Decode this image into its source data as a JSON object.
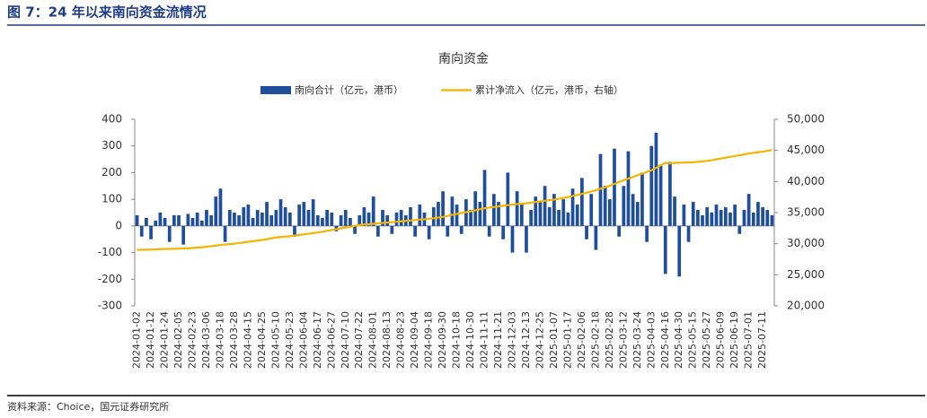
{
  "header": {
    "title": "图 7：24 年以来南向资金流情况"
  },
  "footer": {
    "source": "资料来源：Choice，国元证券研究所"
  },
  "chart_data": {
    "type": "bar_line",
    "title": "南向资金",
    "categories": [
      "2024-01-02",
      null,
      null,
      "2024-01-12",
      null,
      null,
      "2024-01-24",
      null,
      null,
      "2024-02-05",
      null,
      null,
      "2024-02-23",
      null,
      null,
      "2024-03-06",
      null,
      null,
      "2024-03-18",
      null,
      null,
      "2024-03-28",
      null,
      null,
      "2024-04-15",
      null,
      null,
      "2024-04-25",
      null,
      null,
      "2024-05-10",
      null,
      null,
      "2024-05-23",
      null,
      null,
      "2024-06-04",
      null,
      null,
      "2024-06-17",
      null,
      null,
      "2024-06-27",
      null,
      null,
      "2024-07-10",
      null,
      null,
      "2024-07-22",
      null,
      null,
      "2024-08-01",
      null,
      null,
      "2024-08-13",
      null,
      null,
      "2024-08-23",
      null,
      null,
      "2024-09-04",
      null,
      null,
      "2024-09-18",
      null,
      null,
      "2024-09-30",
      null,
      null,
      "2024-10-18",
      null,
      null,
      "2024-10-30",
      null,
      null,
      "2024-11-11",
      null,
      null,
      "2024-11-21",
      null,
      null,
      "2024-12-03",
      null,
      null,
      "2024-12-13",
      null,
      null,
      "2024-12-25",
      null,
      null,
      "2025-01-07",
      null,
      null,
      "2025-01-17",
      null,
      null,
      "2025-02-06",
      null,
      null,
      "2025-02-18",
      null,
      null,
      "2025-02-28",
      null,
      null,
      "2025-03-12",
      null,
      null,
      "2025-03-24",
      null,
      null,
      "2025-04-03",
      null,
      null,
      "2025-04-16",
      null,
      null,
      "2025-04-30",
      null,
      null,
      "2025-05-15",
      null,
      null,
      "2025-05-27",
      null,
      null,
      "2025-06-09",
      null,
      null,
      "2025-06-19",
      null,
      null,
      "2025-07-01",
      null,
      null,
      "2025-07-11",
      null,
      null
    ],
    "series": [
      {
        "name": "南向合计（亿元，港币）",
        "color": "#1f4e9c",
        "kind": "bar",
        "axis": "y",
        "values": [
          40,
          -40,
          30,
          -50,
          20,
          50,
          30,
          -60,
          40,
          40,
          -70,
          45,
          30,
          50,
          20,
          60,
          40,
          110,
          140,
          -60,
          60,
          50,
          40,
          70,
          80,
          30,
          60,
          50,
          90,
          40,
          60,
          100,
          70,
          50,
          -40,
          80,
          90,
          60,
          100,
          40,
          30,
          60,
          50,
          -20,
          40,
          60,
          30,
          -30,
          40,
          70,
          50,
          110,
          -40,
          60,
          40,
          -30,
          50,
          60,
          40,
          70,
          -40,
          80,
          50,
          -50,
          70,
          90,
          130,
          -40,
          110,
          80,
          -30,
          100,
          60,
          130,
          90,
          210,
          -40,
          120,
          90,
          -50,
          200,
          -100,
          130,
          80,
          -100,
          60,
          110,
          90,
          150,
          70,
          120,
          60,
          100,
          50,
          140,
          80,
          180,
          -50,
          120,
          -90,
          270,
          150,
          100,
          290,
          -40,
          150,
          280,
          120,
          90,
          200,
          -60,
          300,
          350,
          230,
          -180,
          240,
          110,
          -190,
          80,
          -60,
          90,
          60,
          40,
          70,
          50,
          80,
          60,
          70,
          50,
          80,
          -30,
          60,
          120,
          50,
          90,
          70,
          60,
          40
        ]
      },
      {
        "name": "累计净流入（亿元，港币，右轴）",
        "color": "#f5b400",
        "kind": "line",
        "axis": "y2",
        "values": [
          29000,
          29020,
          29030,
          29050,
          29080,
          29120,
          29150,
          29170,
          29180,
          29200,
          29230,
          29270,
          29300,
          29370,
          29430,
          29500,
          29600,
          29700,
          29800,
          29870,
          29930,
          30000,
          30100,
          30200,
          30300,
          30400,
          30500,
          30600,
          30730,
          30870,
          31000,
          31070,
          31130,
          31200,
          31300,
          31400,
          31500,
          31600,
          31700,
          31800,
          31930,
          32070,
          32200,
          32330,
          32470,
          32600,
          32730,
          32870,
          33000,
          33070,
          33130,
          33200,
          33270,
          33330,
          33400,
          33470,
          33530,
          33600,
          33670,
          33730,
          33800,
          33870,
          33930,
          34000,
          34100,
          34200,
          34300,
          34470,
          34630,
          34800,
          34930,
          35070,
          35200,
          35370,
          35530,
          35700,
          35800,
          35900,
          36000,
          36100,
          36200,
          36300,
          36370,
          36430,
          36500,
          36600,
          36700,
          36800,
          36900,
          37000,
          37100,
          37230,
          37370,
          37500,
          37670,
          37830,
          38000,
          38200,
          38400,
          38600,
          38830,
          39070,
          39300,
          39600,
          39900,
          40200,
          40470,
          40730,
          41000,
          41270,
          41530,
          41800,
          42200,
          42600,
          43000,
          42900,
          43000,
          43000,
          43030,
          43070,
          43100,
          43170,
          43230,
          43300,
          43430,
          43570,
          43700,
          43830,
          43970,
          44100,
          44230,
          44370,
          44500,
          44600,
          44700,
          44800,
          44930,
          45070
        ]
      }
    ],
    "ylim": [
      -300,
      400
    ],
    "yticks": [
      -300,
      -200,
      -100,
      0,
      100,
      200,
      300,
      400
    ],
    "y2lim": [
      20000,
      50000
    ],
    "y2ticks": [
      {
        "value": 20000,
        "label": "20,000"
      },
      {
        "value": 25000,
        "label": "25,000"
      },
      {
        "value": 30000,
        "label": "30,000"
      },
      {
        "value": 35000,
        "label": "35,000"
      },
      {
        "value": 40000,
        "label": "40,000"
      },
      {
        "value": 45000,
        "label": "45,000"
      },
      {
        "value": 50000,
        "label": "50,000"
      }
    ],
    "grid": false,
    "legend": "top"
  }
}
